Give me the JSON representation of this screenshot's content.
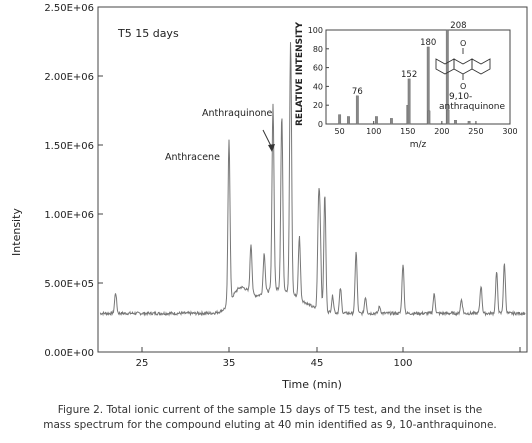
{
  "figure": {
    "caption_line1": "Figure 2. Total ionic current of the sample 15 days of T5 test, and the inset is the",
    "caption_line2": "mass spectrum for the compound eluting at 40 min identified as 9, 10-anthraquinone."
  },
  "chart_data": [
    {
      "type": "line",
      "title": "T5 15  days",
      "xlabel": "Time (min)",
      "ylabel": "Intensity",
      "ylim": [
        0,
        2500000
      ],
      "y_ticks": [
        "0.00E+00",
        "5.00E+05",
        "1.00E+06",
        "1.50E+06",
        "2.00E+06",
        "2.50E+06"
      ],
      "x_tick_labels": [
        "25",
        "35",
        "45",
        "100"
      ],
      "grid": false,
      "annotations": [
        {
          "text": "Anthracene",
          "peak": "35"
        },
        {
          "text": "Anthraquinone",
          "peak": "40"
        }
      ],
      "baseline": 280000,
      "peaks": [
        {
          "x": 22,
          "y": 430000
        },
        {
          "x": 35,
          "y": 1470000
        },
        {
          "x": 37.5,
          "y": 640000
        },
        {
          "x": 39,
          "y": 570000
        },
        {
          "x": 40,
          "y": 1620000
        },
        {
          "x": 41,
          "y": 1540000
        },
        {
          "x": 42,
          "y": 2100000
        },
        {
          "x": 43,
          "y": 730000
        },
        {
          "x": 46,
          "y": 960000
        },
        {
          "x": 47,
          "y": 800000
        },
        {
          "x": 50,
          "y": 1130000
        },
        {
          "x": 55,
          "y": 400000
        },
        {
          "x": 60,
          "y": 460000
        },
        {
          "x": 70,
          "y": 730000
        },
        {
          "x": 76,
          "y": 400000
        },
        {
          "x": 85,
          "y": 330000
        },
        {
          "x": 100,
          "y": 640000
        },
        {
          "x": 108,
          "y": 420000
        },
        {
          "x": 115,
          "y": 380000
        },
        {
          "x": 120,
          "y": 480000
        },
        {
          "x": 124,
          "y": 580000
        },
        {
          "x": 126,
          "y": 640000
        }
      ]
    },
    {
      "type": "bar",
      "subtype": "mass-spectrum-inset",
      "xlabel": "m/z",
      "ylabel": "RELATIVE INTENSITY",
      "xlim": [
        0,
        300
      ],
      "ylim": [
        0,
        100
      ],
      "x_ticks": [
        "50",
        "100",
        "150",
        "200",
        "250",
        "300"
      ],
      "y_ticks": [
        "0",
        "20",
        "40",
        "60",
        "80",
        "100"
      ],
      "peak_labels": [
        "76",
        "152",
        "180",
        "208"
      ],
      "structure_label_line1": "9,10-",
      "structure_label_line2": "anthraquinone",
      "peaks": [
        {
          "mz": 50,
          "value": 10
        },
        {
          "mz": 63,
          "value": 8
        },
        {
          "mz": 76,
          "value": 30
        },
        {
          "mz": 104,
          "value": 8
        },
        {
          "mz": 126,
          "value": 6
        },
        {
          "mz": 150,
          "value": 20
        },
        {
          "mz": 152,
          "value": 48
        },
        {
          "mz": 180,
          "value": 82
        },
        {
          "mz": 181,
          "value": 14
        },
        {
          "mz": 208,
          "value": 100
        },
        {
          "mz": 209,
          "value": 15
        },
        {
          "mz": 220,
          "value": 4
        },
        {
          "mz": 240,
          "value": 3
        }
      ]
    }
  ]
}
